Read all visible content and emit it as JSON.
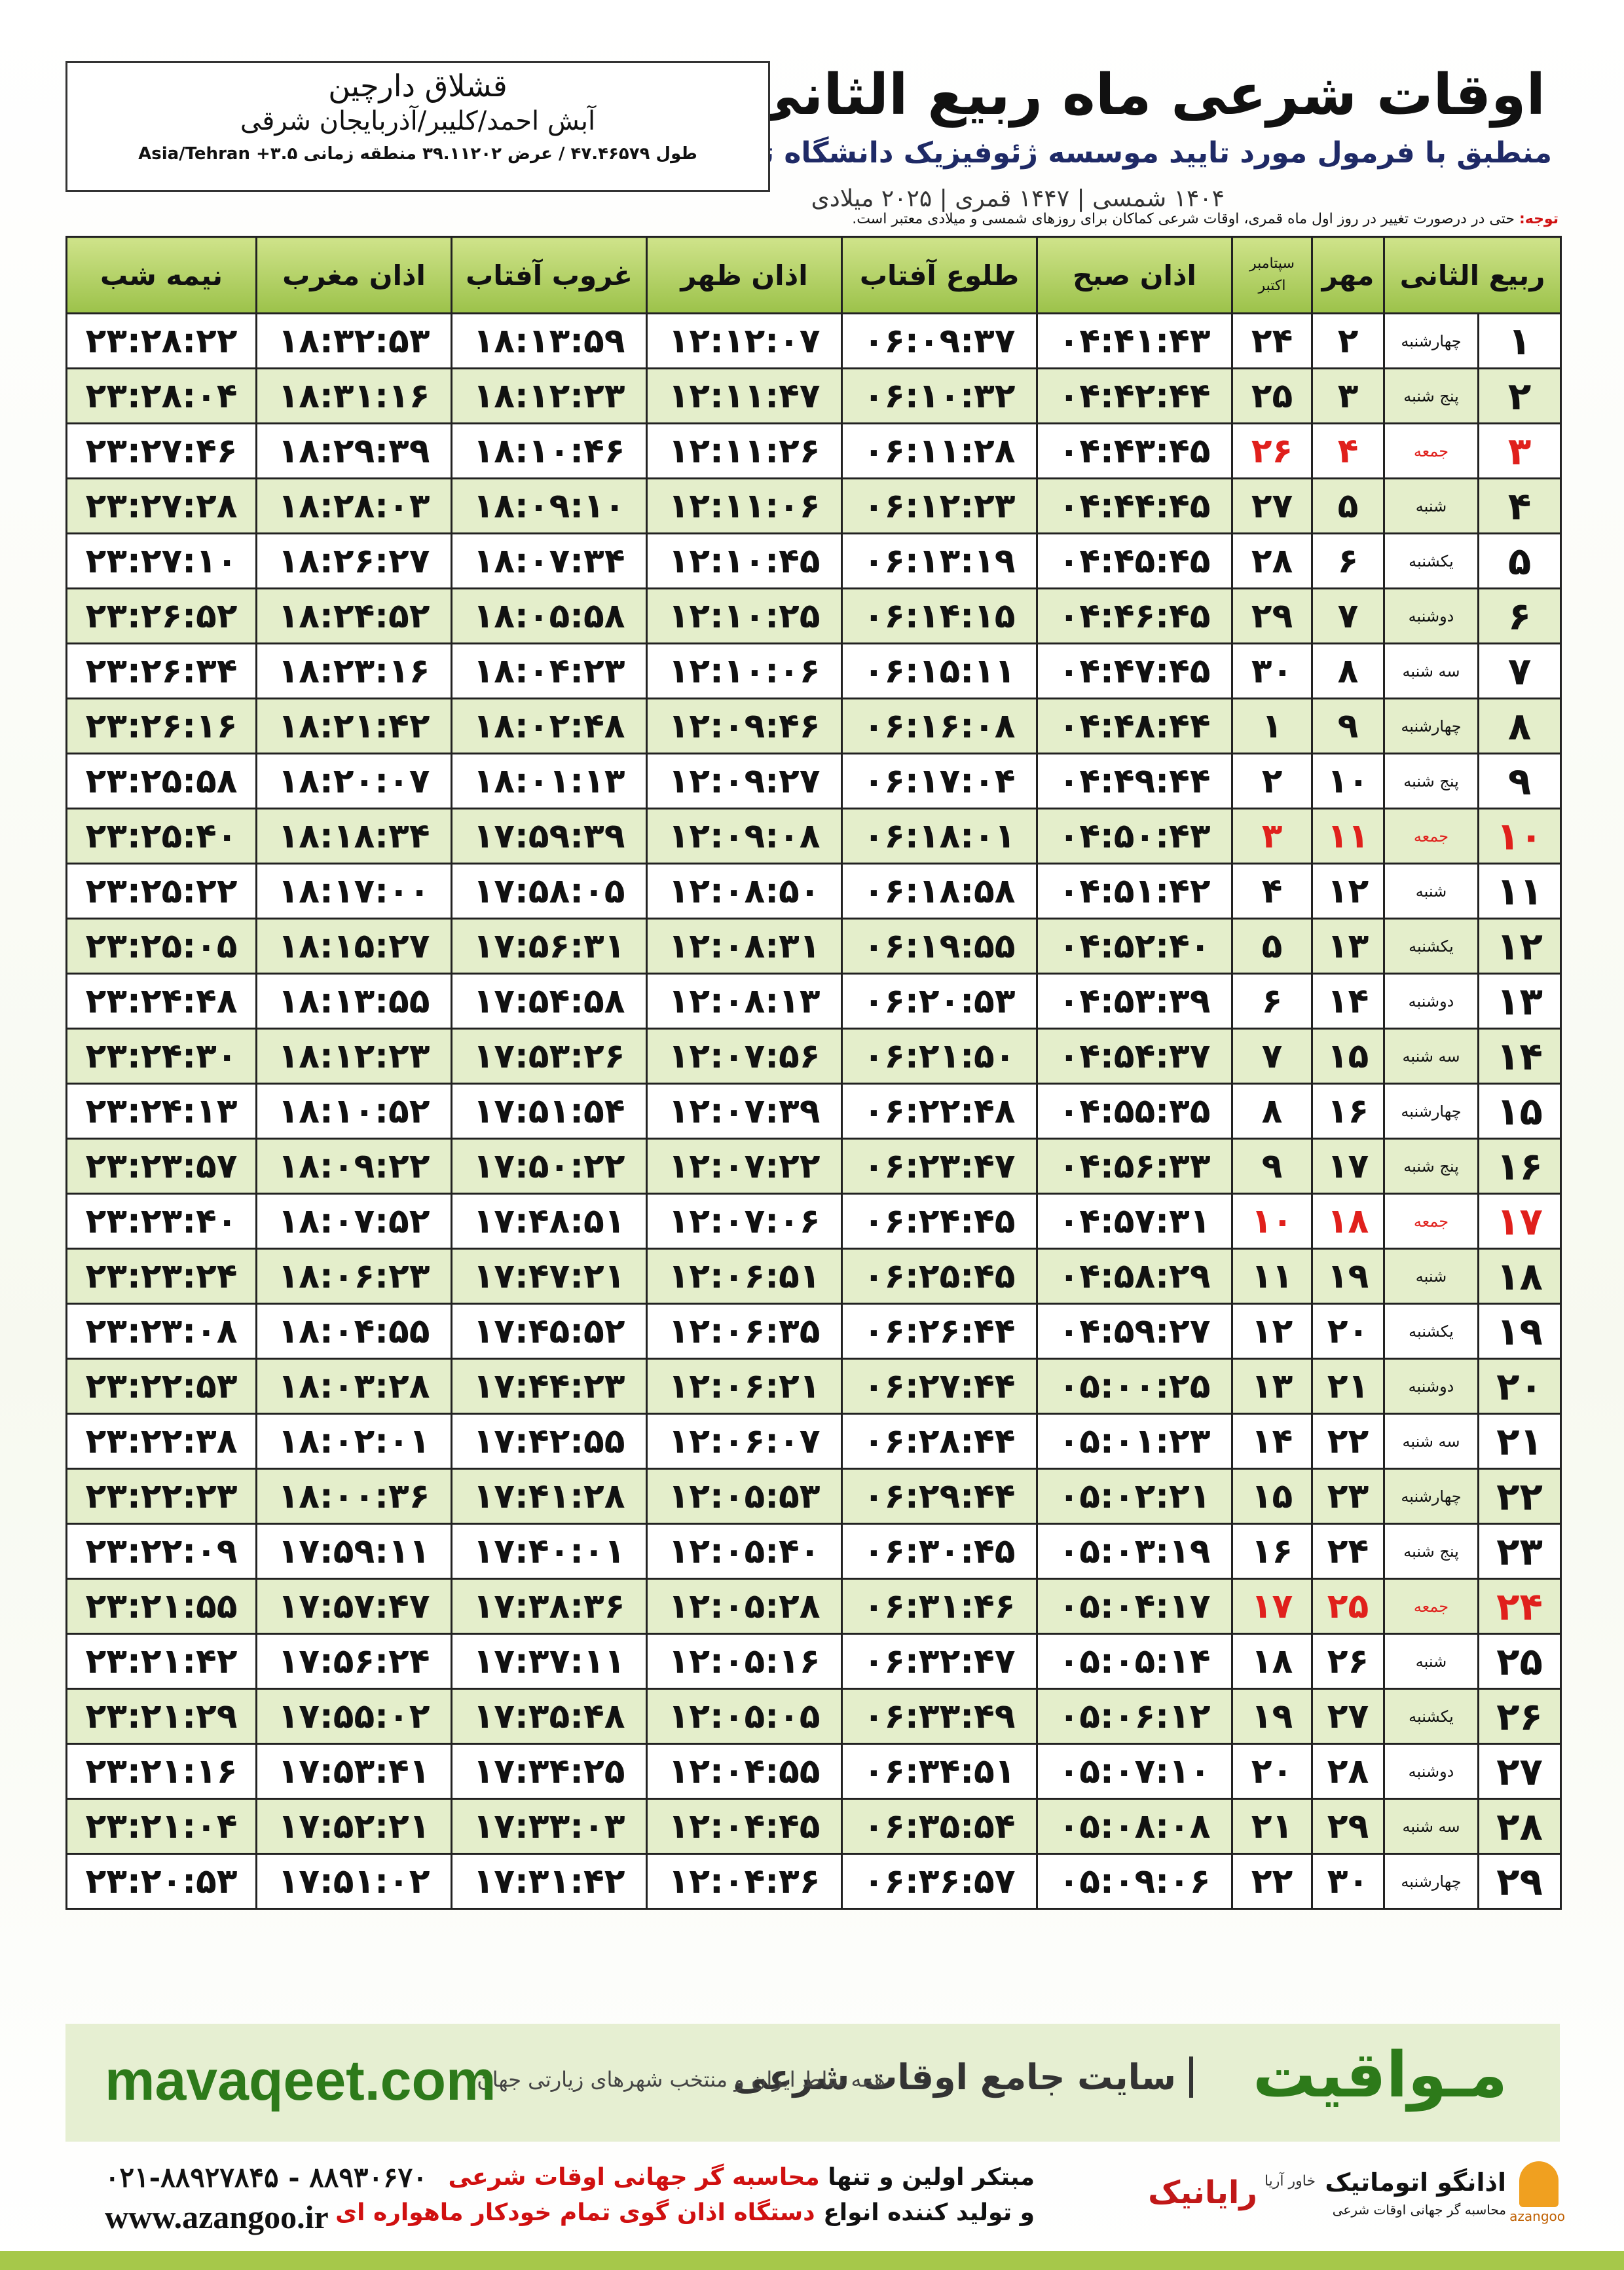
{
  "header": {
    "title": "اوقات شرعی ماه ربیع الثانی",
    "subtitle": "منطبق با فرمول مورد تایید موسسه ژئوفیزیک دانشگاه تهران",
    "years": "۱۴۰۴ شمسی | ۱۴۴۷ قمری | ۲۰۲۵ میلادی"
  },
  "location": {
    "name": "قشلاق دارچین",
    "path": "آبش احمد/کلیبر/آذربایجان شرقی",
    "coords": "طول ۴۷.۴۶۵۷۹ / عرض ۳۹.۱۱۲۰۲ منطقه زمانی ۳.۵+ Asia/Tehran"
  },
  "note": {
    "label": "توجه:",
    "text": "حتی در درصورت تغییر در روز اول ماه قمری، اوقات شرعی کماکان برای روزهای شمسی و میلادی معتبر است."
  },
  "table": {
    "columns": [
      "ربیع الثانی",
      "مهر",
      [
        "سپتامبر",
        "اکتبر"
      ],
      "اذان صبح",
      "طلوع آفتاب",
      "اذان ظهر",
      "غروب آفتاب",
      "اذان مغرب",
      "نیمه شب"
    ],
    "holiday_rows": [
      2,
      9,
      16,
      23
    ],
    "holiday_color": "#e0201c",
    "rows": [
      [
        "۱",
        "چهارشنبه",
        "۲",
        "۲۴",
        "۰۴:۴۱:۴۳",
        "۰۶:۰۹:۳۷",
        "۱۲:۱۲:۰۷",
        "۱۸:۱۳:۵۹",
        "۱۸:۳۲:۵۳",
        "۲۳:۲۸:۲۲"
      ],
      [
        "۲",
        "پنج شنبه",
        "۳",
        "۲۵",
        "۰۴:۴۲:۴۴",
        "۰۶:۱۰:۳۲",
        "۱۲:۱۱:۴۷",
        "۱۸:۱۲:۲۳",
        "۱۸:۳۱:۱۶",
        "۲۳:۲۸:۰۴"
      ],
      [
        "۳",
        "جمعه",
        "۴",
        "۲۶",
        "۰۴:۴۳:۴۵",
        "۰۶:۱۱:۲۸",
        "۱۲:۱۱:۲۶",
        "۱۸:۱۰:۴۶",
        "۱۸:۲۹:۳۹",
        "۲۳:۲۷:۴۶"
      ],
      [
        "۴",
        "شنبه",
        "۵",
        "۲۷",
        "۰۴:۴۴:۴۵",
        "۰۶:۱۲:۲۳",
        "۱۲:۱۱:۰۶",
        "۱۸:۰۹:۱۰",
        "۱۸:۲۸:۰۳",
        "۲۳:۲۷:۲۸"
      ],
      [
        "۵",
        "یکشنبه",
        "۶",
        "۲۸",
        "۰۴:۴۵:۴۵",
        "۰۶:۱۳:۱۹",
        "۱۲:۱۰:۴۵",
        "۱۸:۰۷:۳۴",
        "۱۸:۲۶:۲۷",
        "۲۳:۲۷:۱۰"
      ],
      [
        "۶",
        "دوشنبه",
        "۷",
        "۲۹",
        "۰۴:۴۶:۴۵",
        "۰۶:۱۴:۱۵",
        "۱۲:۱۰:۲۵",
        "۱۸:۰۵:۵۸",
        "۱۸:۲۴:۵۲",
        "۲۳:۲۶:۵۲"
      ],
      [
        "۷",
        "سه شنبه",
        "۸",
        "۳۰",
        "۰۴:۴۷:۴۵",
        "۰۶:۱۵:۱۱",
        "۱۲:۱۰:۰۶",
        "۱۸:۰۴:۲۳",
        "۱۸:۲۳:۱۶",
        "۲۳:۲۶:۳۴"
      ],
      [
        "۸",
        "چهارشنبه",
        "۹",
        "۱",
        "۰۴:۴۸:۴۴",
        "۰۶:۱۶:۰۸",
        "۱۲:۰۹:۴۶",
        "۱۸:۰۲:۴۸",
        "۱۸:۲۱:۴۲",
        "۲۳:۲۶:۱۶"
      ],
      [
        "۹",
        "پنج شنبه",
        "۱۰",
        "۲",
        "۰۴:۴۹:۴۴",
        "۰۶:۱۷:۰۴",
        "۱۲:۰۹:۲۷",
        "۱۸:۰۱:۱۳",
        "۱۸:۲۰:۰۷",
        "۲۳:۲۵:۵۸"
      ],
      [
        "۱۰",
        "جمعه",
        "۱۱",
        "۳",
        "۰۴:۵۰:۴۳",
        "۰۶:۱۸:۰۱",
        "۱۲:۰۹:۰۸",
        "۱۷:۵۹:۳۹",
        "۱۸:۱۸:۳۴",
        "۲۳:۲۵:۴۰"
      ],
      [
        "۱۱",
        "شنبه",
        "۱۲",
        "۴",
        "۰۴:۵۱:۴۲",
        "۰۶:۱۸:۵۸",
        "۱۲:۰۸:۵۰",
        "۱۷:۵۸:۰۵",
        "۱۸:۱۷:۰۰",
        "۲۳:۲۵:۲۲"
      ],
      [
        "۱۲",
        "یکشنبه",
        "۱۳",
        "۵",
        "۰۴:۵۲:۴۰",
        "۰۶:۱۹:۵۵",
        "۱۲:۰۸:۳۱",
        "۱۷:۵۶:۳۱",
        "۱۸:۱۵:۲۷",
        "۲۳:۲۵:۰۵"
      ],
      [
        "۱۳",
        "دوشنبه",
        "۱۴",
        "۶",
        "۰۴:۵۳:۳۹",
        "۰۶:۲۰:۵۳",
        "۱۲:۰۸:۱۳",
        "۱۷:۵۴:۵۸",
        "۱۸:۱۳:۵۵",
        "۲۳:۲۴:۴۸"
      ],
      [
        "۱۴",
        "سه شنبه",
        "۱۵",
        "۷",
        "۰۴:۵۴:۳۷",
        "۰۶:۲۱:۵۰",
        "۱۲:۰۷:۵۶",
        "۱۷:۵۳:۲۶",
        "۱۸:۱۲:۲۳",
        "۲۳:۲۴:۳۰"
      ],
      [
        "۱۵",
        "چهارشنبه",
        "۱۶",
        "۸",
        "۰۴:۵۵:۳۵",
        "۰۶:۲۲:۴۸",
        "۱۲:۰۷:۳۹",
        "۱۷:۵۱:۵۴",
        "۱۸:۱۰:۵۲",
        "۲۳:۲۴:۱۳"
      ],
      [
        "۱۶",
        "پنج شنبه",
        "۱۷",
        "۹",
        "۰۴:۵۶:۳۳",
        "۰۶:۲۳:۴۷",
        "۱۲:۰۷:۲۲",
        "۱۷:۵۰:۲۲",
        "۱۸:۰۹:۲۲",
        "۲۳:۲۳:۵۷"
      ],
      [
        "۱۷",
        "جمعه",
        "۱۸",
        "۱۰",
        "۰۴:۵۷:۳۱",
        "۰۶:۲۴:۴۵",
        "۱۲:۰۷:۰۶",
        "۱۷:۴۸:۵۱",
        "۱۸:۰۷:۵۲",
        "۲۳:۲۳:۴۰"
      ],
      [
        "۱۸",
        "شنبه",
        "۱۹",
        "۱۱",
        "۰۴:۵۸:۲۹",
        "۰۶:۲۵:۴۵",
        "۱۲:۰۶:۵۱",
        "۱۷:۴۷:۲۱",
        "۱۸:۰۶:۲۳",
        "۲۳:۲۳:۲۴"
      ],
      [
        "۱۹",
        "یکشنبه",
        "۲۰",
        "۱۲",
        "۰۴:۵۹:۲۷",
        "۰۶:۲۶:۴۴",
        "۱۲:۰۶:۳۵",
        "۱۷:۴۵:۵۲",
        "۱۸:۰۴:۵۵",
        "۲۳:۲۳:۰۸"
      ],
      [
        "۲۰",
        "دوشنبه",
        "۲۱",
        "۱۳",
        "۰۵:۰۰:۲۵",
        "۰۶:۲۷:۴۴",
        "۱۲:۰۶:۲۱",
        "۱۷:۴۴:۲۳",
        "۱۸:۰۳:۲۸",
        "۲۳:۲۲:۵۳"
      ],
      [
        "۲۱",
        "سه شنبه",
        "۲۲",
        "۱۴",
        "۰۵:۰۱:۲۳",
        "۰۶:۲۸:۴۴",
        "۱۲:۰۶:۰۷",
        "۱۷:۴۲:۵۵",
        "۱۸:۰۲:۰۱",
        "۲۳:۲۲:۳۸"
      ],
      [
        "۲۲",
        "چهارشنبه",
        "۲۳",
        "۱۵",
        "۰۵:۰۲:۲۱",
        "۰۶:۲۹:۴۴",
        "۱۲:۰۵:۵۳",
        "۱۷:۴۱:۲۸",
        "۱۸:۰۰:۳۶",
        "۲۳:۲۲:۲۳"
      ],
      [
        "۲۳",
        "پنج شنبه",
        "۲۴",
        "۱۶",
        "۰۵:۰۳:۱۹",
        "۰۶:۳۰:۴۵",
        "۱۲:۰۵:۴۰",
        "۱۷:۴۰:۰۱",
        "۱۷:۵۹:۱۱",
        "۲۳:۲۲:۰۹"
      ],
      [
        "۲۴",
        "جمعه",
        "۲۵",
        "۱۷",
        "۰۵:۰۴:۱۷",
        "۰۶:۳۱:۴۶",
        "۱۲:۰۵:۲۸",
        "۱۷:۳۸:۳۶",
        "۱۷:۵۷:۴۷",
        "۲۳:۲۱:۵۵"
      ],
      [
        "۲۵",
        "شنبه",
        "۲۶",
        "۱۸",
        "۰۵:۰۵:۱۴",
        "۰۶:۳۲:۴۷",
        "۱۲:۰۵:۱۶",
        "۱۷:۳۷:۱۱",
        "۱۷:۵۶:۲۴",
        "۲۳:۲۱:۴۲"
      ],
      [
        "۲۶",
        "یکشنبه",
        "۲۷",
        "۱۹",
        "۰۵:۰۶:۱۲",
        "۰۶:۳۳:۴۹",
        "۱۲:۰۵:۰۵",
        "۱۷:۳۵:۴۸",
        "۱۷:۵۵:۰۲",
        "۲۳:۲۱:۲۹"
      ],
      [
        "۲۷",
        "دوشنبه",
        "۲۸",
        "۲۰",
        "۰۵:۰۷:۱۰",
        "۰۶:۳۴:۵۱",
        "۱۲:۰۴:۵۵",
        "۱۷:۳۴:۲۵",
        "۱۷:۵۳:۴۱",
        "۲۳:۲۱:۱۶"
      ],
      [
        "۲۸",
        "سه شنبه",
        "۲۹",
        "۲۱",
        "۰۵:۰۸:۰۸",
        "۰۶:۳۵:۵۴",
        "۱۲:۰۴:۴۵",
        "۱۷:۳۳:۰۳",
        "۱۷:۵۲:۲۱",
        "۲۳:۲۱:۰۴"
      ],
      [
        "۲۹",
        "چهارشنبه",
        "۳۰",
        "۲۲",
        "۰۵:۰۹:۰۶",
        "۰۶:۳۶:۵۷",
        "۱۲:۰۴:۳۶",
        "۱۷:۳۱:۴۲",
        "۱۷:۵۱:۰۲",
        "۲۳:۲۰:۵۳"
      ]
    ]
  },
  "banner": {
    "brand": "مـواقیت",
    "tagline": "سایت جامع اوقات شرعی",
    "scope": "همه نقاط ایران و منتخب شهرهای زیارتی جهان",
    "url": "mavaqeet.com"
  },
  "footer": {
    "phones": "۰۲۱-۸۸۹۲۷۸۴۵ - ۸۸۹۳۰۶۷۰",
    "web": "www.azangoo.ir",
    "line1": [
      "مبتکر اولین و تنها ",
      "محاسبه گر جهانی اوقات شرعی"
    ],
    "line2": [
      "و تولید کننده انواع ",
      "دستگاه اذان گوی تمام خودکار ماهواره ای"
    ],
    "logo1": "رایانیک",
    "logo1_sub": "خاور آریا",
    "logo2": "اذانگو اتوماتیک",
    "logo2_sub": "محاسبه گر جهانی اوقات شرعی",
    "logo2_latin": "azangoo"
  }
}
